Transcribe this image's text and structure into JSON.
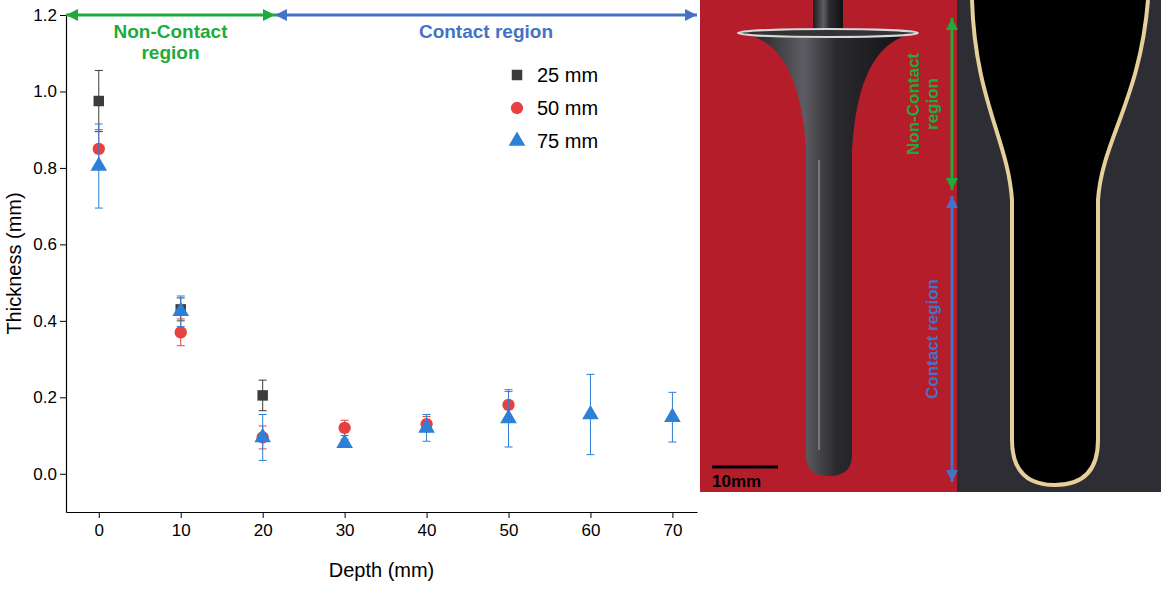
{
  "chart_data": {
    "type": "scatter",
    "x_label": "Depth (mm)",
    "y_label": "Thickness (mm)",
    "xlim": [
      -4,
      73
    ],
    "xticks": [
      0,
      10,
      20,
      30,
      40,
      50,
      60,
      70
    ],
    "ylim": [
      -0.1,
      1.2
    ],
    "yticks": [
      {
        "value": 0,
        "label": "0.0"
      },
      0.2,
      0.4,
      0.6,
      0.8,
      {
        "value": 1,
        "label": "1.0"
      },
      1.2
    ],
    "legend": "upper right",
    "series": [
      {
        "name": "25 mm",
        "color": "#3c3c3c",
        "marker": "square",
        "x": [
          0,
          10,
          20
        ],
        "values": [
          0.975,
          0.43,
          0.205
        ],
        "errors": [
          0.08,
          0.03,
          0.04
        ]
      },
      {
        "name": "50 mm",
        "color": "#e8403f",
        "marker": "circle",
        "x": [
          0,
          10,
          20,
          30,
          40,
          50
        ],
        "values": [
          0.85,
          0.37,
          0.095,
          0.12,
          0.13,
          0.18
        ],
        "errors": [
          0.05,
          0.035,
          0.03,
          0.02,
          0.02,
          0.035
        ]
      },
      {
        "name": "75 mm",
        "color": "#2e7fd6",
        "marker": "triangle",
        "x": [
          0,
          10,
          20,
          30,
          40,
          50,
          60,
          70
        ],
        "values": [
          0.805,
          0.425,
          0.095,
          0.08,
          0.12,
          0.145,
          0.155,
          0.148
        ],
        "errors": [
          0.11,
          0.04,
          0.06,
          0.01,
          0.035,
          0.075,
          0.105,
          0.065
        ]
      }
    ],
    "regions": [
      {
        "label": "Non-Contact region",
        "color": "#1faa3c",
        "x_range": [
          -4,
          21.5
        ]
      },
      {
        "label": "Contact region",
        "color": "#4472c4",
        "x_range": [
          21.5,
          73
        ]
      }
    ]
  },
  "image": {
    "scale_bar_label": "10mm",
    "regions": [
      {
        "label": "Non-Contact region",
        "color": "#1faa3c"
      },
      {
        "label": "Contact region",
        "color": "#4472c4"
      }
    ]
  }
}
